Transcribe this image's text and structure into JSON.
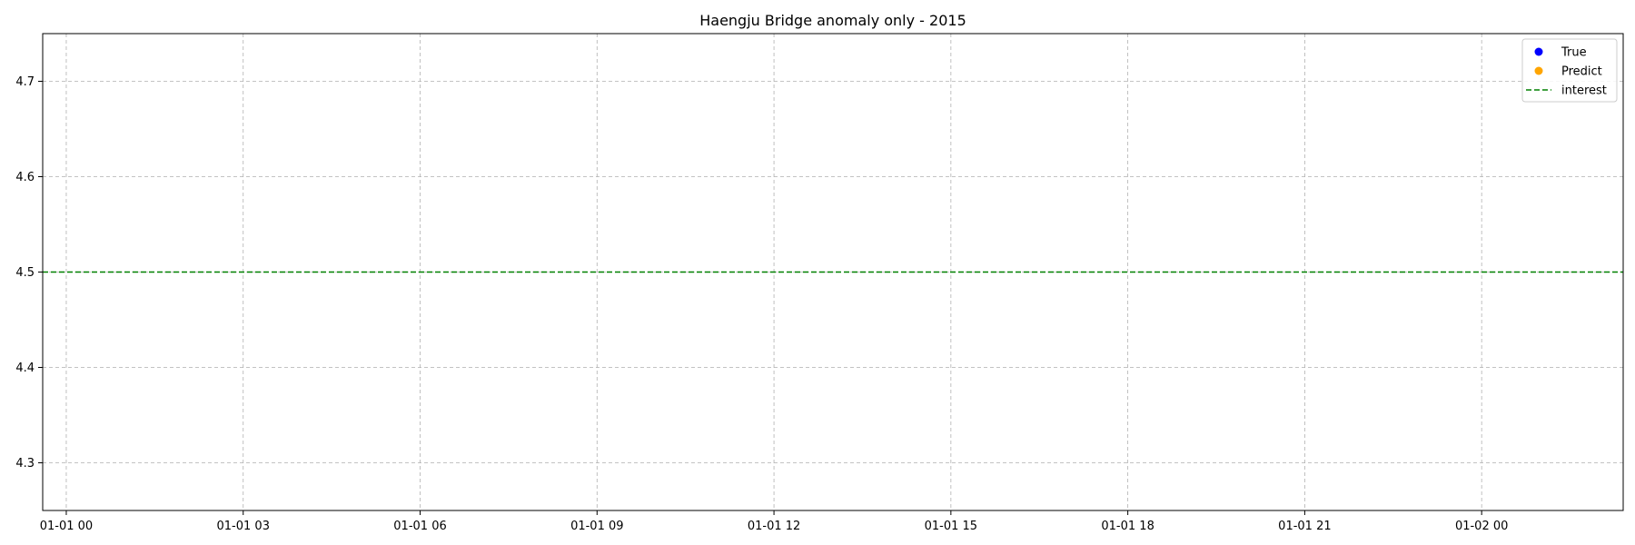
{
  "chart_data": {
    "type": "scatter",
    "title": "Haengju Bridge anomaly only - 2015",
    "xlabel": "",
    "ylabel": "",
    "x_axis": {
      "kind": "datetime",
      "ticks": [
        "01-01 00",
        "01-01 03",
        "01-01 06",
        "01-01 09",
        "01-01 12",
        "01-01 15",
        "01-01 18",
        "01-01 21",
        "01-02 00"
      ],
      "range_hours": [
        -0.4,
        26.4
      ]
    },
    "ylim": [
      4.25,
      4.75
    ],
    "yticks": [
      "4.3",
      "4.4",
      "4.5",
      "4.6",
      "4.7"
    ],
    "grid": true,
    "legend_position": "top-right",
    "series": [
      {
        "name": "True",
        "kind": "points",
        "color": "#0000ff",
        "points": []
      },
      {
        "name": "Predict",
        "kind": "points",
        "color": "#ffa500",
        "points": []
      },
      {
        "name": "interest",
        "kind": "hline",
        "color": "#008000",
        "style": "dashed",
        "y": 4.5
      }
    ]
  }
}
